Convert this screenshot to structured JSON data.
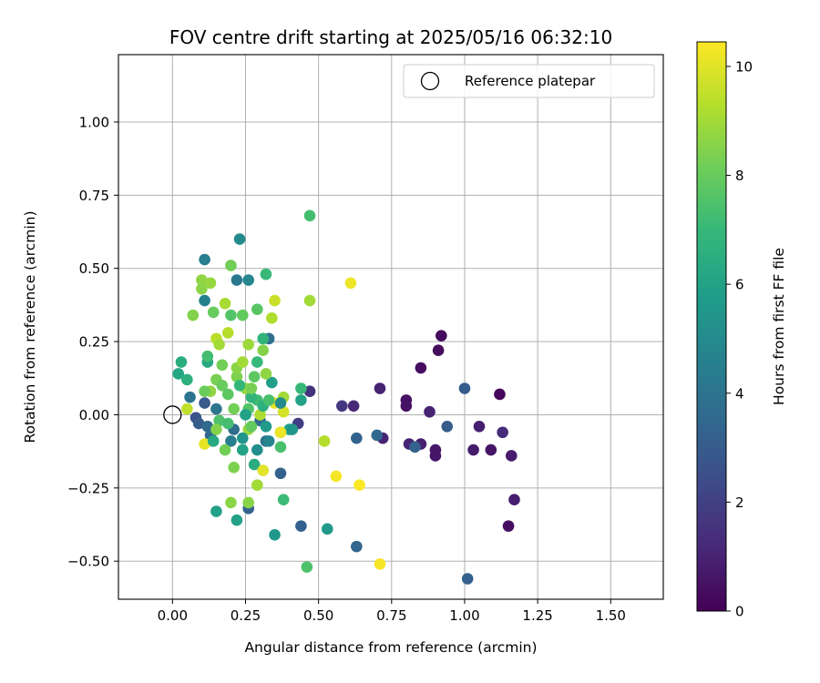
{
  "chart_data": {
    "type": "scatter",
    "title": "FOV centre drift starting at 2025/05/16 06:32:10",
    "xlabel": "Angular distance from reference (arcmin)",
    "ylabel": "Rotation from reference (arcmin)",
    "xlim": [
      -0.185,
      1.68
    ],
    "ylim": [
      -0.63,
      1.23
    ],
    "xticks": [
      "0.00",
      "0.25",
      "0.50",
      "0.75",
      "1.00",
      "1.25",
      "1.50"
    ],
    "yticks": [
      "−0.50",
      "−0.25",
      "0.00",
      "0.25",
      "0.50",
      "0.75",
      "1.00"
    ],
    "grid": true,
    "legend": {
      "placement": "top-right",
      "entries": [
        "Reference platepar"
      ]
    },
    "reference_point": {
      "x": 0.0,
      "y": 0.0
    },
    "colorbar": {
      "label": "Hours from first FF file",
      "range": [
        0,
        10.45
      ],
      "ticks": [
        "0",
        "2",
        "4",
        "6",
        "8",
        "10"
      ],
      "colormap": "viridis"
    },
    "series": [
      {
        "points": [
          {
            "x": 0.92,
            "y": 0.27,
            "c": 0.3
          },
          {
            "x": 0.91,
            "y": 0.22,
            "c": 0.3
          },
          {
            "x": 0.85,
            "y": 0.16,
            "c": 0.4
          },
          {
            "x": 0.8,
            "y": 0.05,
            "c": 0.5
          },
          {
            "x": 0.8,
            "y": 0.03,
            "c": 0.5
          },
          {
            "x": 0.88,
            "y": 0.01,
            "c": 1.0
          },
          {
            "x": 0.9,
            "y": -0.12,
            "c": 0.6
          },
          {
            "x": 0.9,
            "y": -0.14,
            "c": 0.6
          },
          {
            "x": 0.85,
            "y": -0.1,
            "c": 0.9
          },
          {
            "x": 0.81,
            "y": -0.1,
            "c": 1.0
          },
          {
            "x": 1.12,
            "y": 0.07,
            "c": 0.2
          },
          {
            "x": 1.05,
            "y": -0.04,
            "c": 0.9
          },
          {
            "x": 1.03,
            "y": -0.12,
            "c": 0.8
          },
          {
            "x": 1.09,
            "y": -0.12,
            "c": 0.6
          },
          {
            "x": 1.13,
            "y": -0.06,
            "c": 1.3
          },
          {
            "x": 1.16,
            "y": -0.14,
            "c": 0.8
          },
          {
            "x": 1.17,
            "y": -0.29,
            "c": 0.9
          },
          {
            "x": 1.15,
            "y": -0.38,
            "c": 0.4
          },
          {
            "x": 0.71,
            "y": 0.09,
            "c": 1.0
          },
          {
            "x": 0.72,
            "y": -0.08,
            "c": 1.0
          },
          {
            "x": 0.62,
            "y": 0.03,
            "c": 1.2
          },
          {
            "x": 0.58,
            "y": 0.03,
            "c": 1.7
          },
          {
            "x": 0.47,
            "y": 0.08,
            "c": 1.5
          },
          {
            "x": 0.43,
            "y": -0.03,
            "c": 1.9
          },
          {
            "x": 1.0,
            "y": 0.09,
            "c": 3.0
          },
          {
            "x": 0.94,
            "y": -0.04,
            "c": 3.0
          },
          {
            "x": 0.83,
            "y": -0.11,
            "c": 3.2
          },
          {
            "x": 0.7,
            "y": -0.07,
            "c": 3.5
          },
          {
            "x": 0.63,
            "y": -0.08,
            "c": 3.3
          },
          {
            "x": 1.01,
            "y": -0.56,
            "c": 3.2
          },
          {
            "x": 0.63,
            "y": -0.45,
            "c": 3.4
          },
          {
            "x": 0.44,
            "y": -0.38,
            "c": 3.2
          },
          {
            "x": 0.37,
            "y": -0.2,
            "c": 3.3
          },
          {
            "x": 0.26,
            "y": -0.32,
            "c": 3.3
          },
          {
            "x": 0.08,
            "y": -0.01,
            "c": 2.7
          },
          {
            "x": 0.09,
            "y": -0.03,
            "c": 3.0
          },
          {
            "x": 0.12,
            "y": -0.04,
            "c": 3.5
          },
          {
            "x": 0.11,
            "y": 0.04,
            "c": 2.9
          },
          {
            "x": 0.13,
            "y": -0.07,
            "c": 3.6
          },
          {
            "x": 0.21,
            "y": -0.05,
            "c": 3.7
          },
          {
            "x": 0.3,
            "y": -0.02,
            "c": 3.6
          },
          {
            "x": 0.33,
            "y": 0.26,
            "c": 3.9
          },
          {
            "x": 0.22,
            "y": 0.46,
            "c": 4.2
          },
          {
            "x": 0.26,
            "y": 0.46,
            "c": 4.8
          },
          {
            "x": 0.11,
            "y": 0.53,
            "c": 4.4
          },
          {
            "x": 0.23,
            "y": 0.6,
            "c": 5.0
          },
          {
            "x": 0.11,
            "y": 0.39,
            "c": 4.6
          },
          {
            "x": 0.06,
            "y": 0.06,
            "c": 4.0
          },
          {
            "x": 0.15,
            "y": 0.02,
            "c": 4.1
          },
          {
            "x": 0.32,
            "y": -0.09,
            "c": 4.0
          },
          {
            "x": 0.2,
            "y": -0.09,
            "c": 4.4
          },
          {
            "x": 0.22,
            "y": -0.36,
            "c": 6.0
          },
          {
            "x": 0.15,
            "y": -0.33,
            "c": 5.9
          },
          {
            "x": 0.35,
            "y": -0.41,
            "c": 5.5
          },
          {
            "x": 0.53,
            "y": -0.39,
            "c": 5.6
          },
          {
            "x": 0.44,
            "y": 0.05,
            "c": 6.0
          },
          {
            "x": 0.34,
            "y": 0.11,
            "c": 5.8
          },
          {
            "x": 0.4,
            "y": -0.05,
            "c": 6.1
          },
          {
            "x": 0.24,
            "y": -0.12,
            "c": 6.0
          },
          {
            "x": 0.28,
            "y": -0.17,
            "c": 6.4
          },
          {
            "x": 0.12,
            "y": 0.18,
            "c": 6.3
          },
          {
            "x": 0.03,
            "y": 0.18,
            "c": 6.5
          },
          {
            "x": 0.02,
            "y": 0.14,
            "c": 6.2
          },
          {
            "x": 0.05,
            "y": 0.12,
            "c": 6.6
          },
          {
            "x": 0.32,
            "y": 0.48,
            "c": 7.0
          },
          {
            "x": 0.47,
            "y": 0.68,
            "c": 7.3
          },
          {
            "x": 0.44,
            "y": 0.09,
            "c": 7.0
          },
          {
            "x": 0.38,
            "y": -0.29,
            "c": 7.1
          },
          {
            "x": 0.46,
            "y": -0.52,
            "c": 7.5
          },
          {
            "x": 0.37,
            "y": -0.11,
            "c": 7.4
          },
          {
            "x": 0.26,
            "y": 0.02,
            "c": 7.6
          },
          {
            "x": 0.12,
            "y": 0.2,
            "c": 7.3
          },
          {
            "x": 0.29,
            "y": 0.36,
            "c": 7.7
          },
          {
            "x": 0.28,
            "y": 0.13,
            "c": 7.8
          },
          {
            "x": 0.2,
            "y": 0.34,
            "c": 7.6
          },
          {
            "x": 0.24,
            "y": 0.34,
            "c": 7.9
          },
          {
            "x": 0.14,
            "y": 0.35,
            "c": 8.0
          },
          {
            "x": 0.18,
            "y": -0.12,
            "c": 8.2
          },
          {
            "x": 0.21,
            "y": -0.18,
            "c": 8.4
          },
          {
            "x": 0.2,
            "y": -0.3,
            "c": 8.6
          },
          {
            "x": 0.26,
            "y": -0.3,
            "c": 8.6
          },
          {
            "x": 0.29,
            "y": -0.24,
            "c": 9.0
          },
          {
            "x": 0.37,
            "y": -0.06,
            "c": 9.1
          },
          {
            "x": 0.26,
            "y": -0.05,
            "c": 8.8
          },
          {
            "x": 0.1,
            "y": 0.43,
            "c": 8.6
          },
          {
            "x": 0.1,
            "y": 0.46,
            "c": 8.7
          },
          {
            "x": 0.13,
            "y": 0.45,
            "c": 8.8
          },
          {
            "x": 0.2,
            "y": 0.51,
            "c": 8.2
          },
          {
            "x": 0.07,
            "y": 0.34,
            "c": 8.5
          },
          {
            "x": 0.18,
            "y": 0.38,
            "c": 9.1
          },
          {
            "x": 0.15,
            "y": 0.26,
            "c": 9.4
          },
          {
            "x": 0.16,
            "y": 0.24,
            "c": 9.0
          },
          {
            "x": 0.26,
            "y": 0.24,
            "c": 8.9
          },
          {
            "x": 0.31,
            "y": 0.22,
            "c": 8.5
          },
          {
            "x": 0.32,
            "y": 0.14,
            "c": 8.7
          },
          {
            "x": 0.35,
            "y": 0.39,
            "c": 9.6
          },
          {
            "x": 0.34,
            "y": 0.33,
            "c": 9.2
          },
          {
            "x": 0.47,
            "y": 0.39,
            "c": 9.0
          },
          {
            "x": 0.61,
            "y": 0.45,
            "c": 10.2
          },
          {
            "x": 0.52,
            "y": -0.09,
            "c": 9.3
          },
          {
            "x": 0.56,
            "y": -0.21,
            "c": 10.3
          },
          {
            "x": 0.64,
            "y": -0.24,
            "c": 10.4
          },
          {
            "x": 0.71,
            "y": -0.51,
            "c": 10.3
          },
          {
            "x": 0.31,
            "y": -0.19,
            "c": 10.0
          },
          {
            "x": 0.35,
            "y": 0.04,
            "c": 10.1
          },
          {
            "x": 0.38,
            "y": 0.01,
            "c": 9.8
          },
          {
            "x": 0.37,
            "y": -0.06,
            "c": 10.2
          },
          {
            "x": 0.11,
            "y": -0.1,
            "c": 10.1
          },
          {
            "x": 0.05,
            "y": 0.02,
            "c": 9.5
          },
          {
            "x": 0.38,
            "y": 0.06,
            "c": 9.0
          },
          {
            "x": 0.3,
            "y": 0.0,
            "c": 9.2
          },
          {
            "x": 0.25,
            "y": 0.09,
            "c": 8.8
          },
          {
            "x": 0.22,
            "y": 0.13,
            "c": 8.4
          },
          {
            "x": 0.15,
            "y": 0.12,
            "c": 8.3
          },
          {
            "x": 0.17,
            "y": 0.1,
            "c": 8.0
          },
          {
            "x": 0.13,
            "y": 0.08,
            "c": 8.7
          },
          {
            "x": 0.11,
            "y": 0.08,
            "c": 8.1
          },
          {
            "x": 0.19,
            "y": 0.07,
            "c": 7.8
          },
          {
            "x": 0.21,
            "y": 0.02,
            "c": 8.2
          },
          {
            "x": 0.16,
            "y": -0.02,
            "c": 7.5
          },
          {
            "x": 0.19,
            "y": -0.03,
            "c": 7.3
          },
          {
            "x": 0.15,
            "y": -0.05,
            "c": 8.5
          },
          {
            "x": 0.27,
            "y": -0.04,
            "c": 7.9
          },
          {
            "x": 0.29,
            "y": 0.05,
            "c": 7.2
          },
          {
            "x": 0.23,
            "y": 0.1,
            "c": 6.9
          },
          {
            "x": 0.27,
            "y": 0.06,
            "c": 6.8
          },
          {
            "x": 0.31,
            "y": 0.03,
            "c": 6.6
          },
          {
            "x": 0.33,
            "y": 0.05,
            "c": 7.4
          },
          {
            "x": 0.25,
            "y": 0.0,
            "c": 6.0
          },
          {
            "x": 0.32,
            "y": -0.04,
            "c": 5.7
          },
          {
            "x": 0.24,
            "y": -0.08,
            "c": 5.4
          },
          {
            "x": 0.14,
            "y": -0.09,
            "c": 6.3
          },
          {
            "x": 0.29,
            "y": -0.12,
            "c": 5.2
          },
          {
            "x": 0.22,
            "y": 0.16,
            "c": 8.6
          },
          {
            "x": 0.24,
            "y": 0.18,
            "c": 9.0
          },
          {
            "x": 0.29,
            "y": 0.18,
            "c": 7.0
          },
          {
            "x": 0.31,
            "y": 0.26,
            "c": 6.8
          },
          {
            "x": 0.17,
            "y": 0.17,
            "c": 8.2
          },
          {
            "x": 0.19,
            "y": 0.28,
            "c": 9.3
          },
          {
            "x": 0.27,
            "y": 0.09,
            "c": 8.3
          },
          {
            "x": 0.33,
            "y": -0.09,
            "c": 4.8
          },
          {
            "x": 0.41,
            "y": -0.05,
            "c": 5.5
          },
          {
            "x": 0.37,
            "y": 0.04,
            "c": 5.0
          }
        ]
      }
    ]
  }
}
